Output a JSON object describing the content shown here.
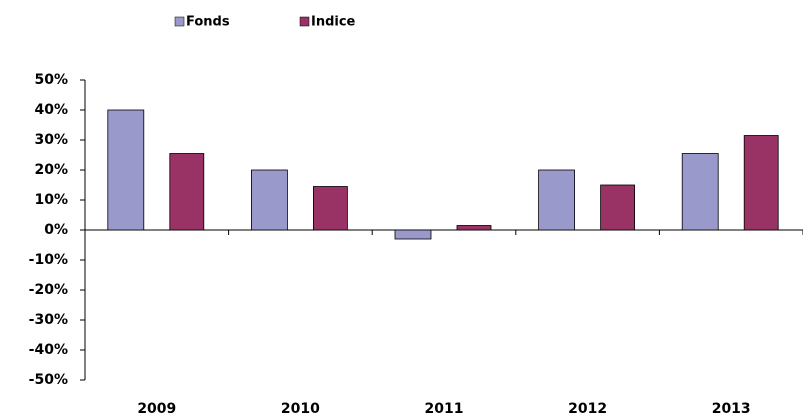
{
  "chart_data": {
    "type": "bar",
    "categories": [
      "2009",
      "2010",
      "2011",
      "2012",
      "2013"
    ],
    "series": [
      {
        "name": "Fonds",
        "color": "#9999cc",
        "values": [
          40,
          20,
          -3,
          20,
          25.5
        ]
      },
      {
        "name": "Indice",
        "color": "#993366",
        "values": [
          25.5,
          14.5,
          1.5,
          15,
          31.5
        ]
      }
    ],
    "ylim": [
      -50,
      50
    ],
    "yticks": [
      {
        "value": -50,
        "label": "-50%"
      },
      {
        "value": -40,
        "label": "-40%"
      },
      {
        "value": -30,
        "label": "-30%"
      },
      {
        "value": -20,
        "label": "-20%"
      },
      {
        "value": -10,
        "label": "-10%"
      },
      {
        "value": 0,
        "label": "0%"
      },
      {
        "value": 10,
        "label": "10%"
      },
      {
        "value": 20,
        "label": "20%"
      },
      {
        "value": 30,
        "label": "30%"
      },
      {
        "value": 40,
        "label": "40%"
      },
      {
        "value": 50,
        "label": "50%"
      }
    ],
    "legend": "top"
  }
}
